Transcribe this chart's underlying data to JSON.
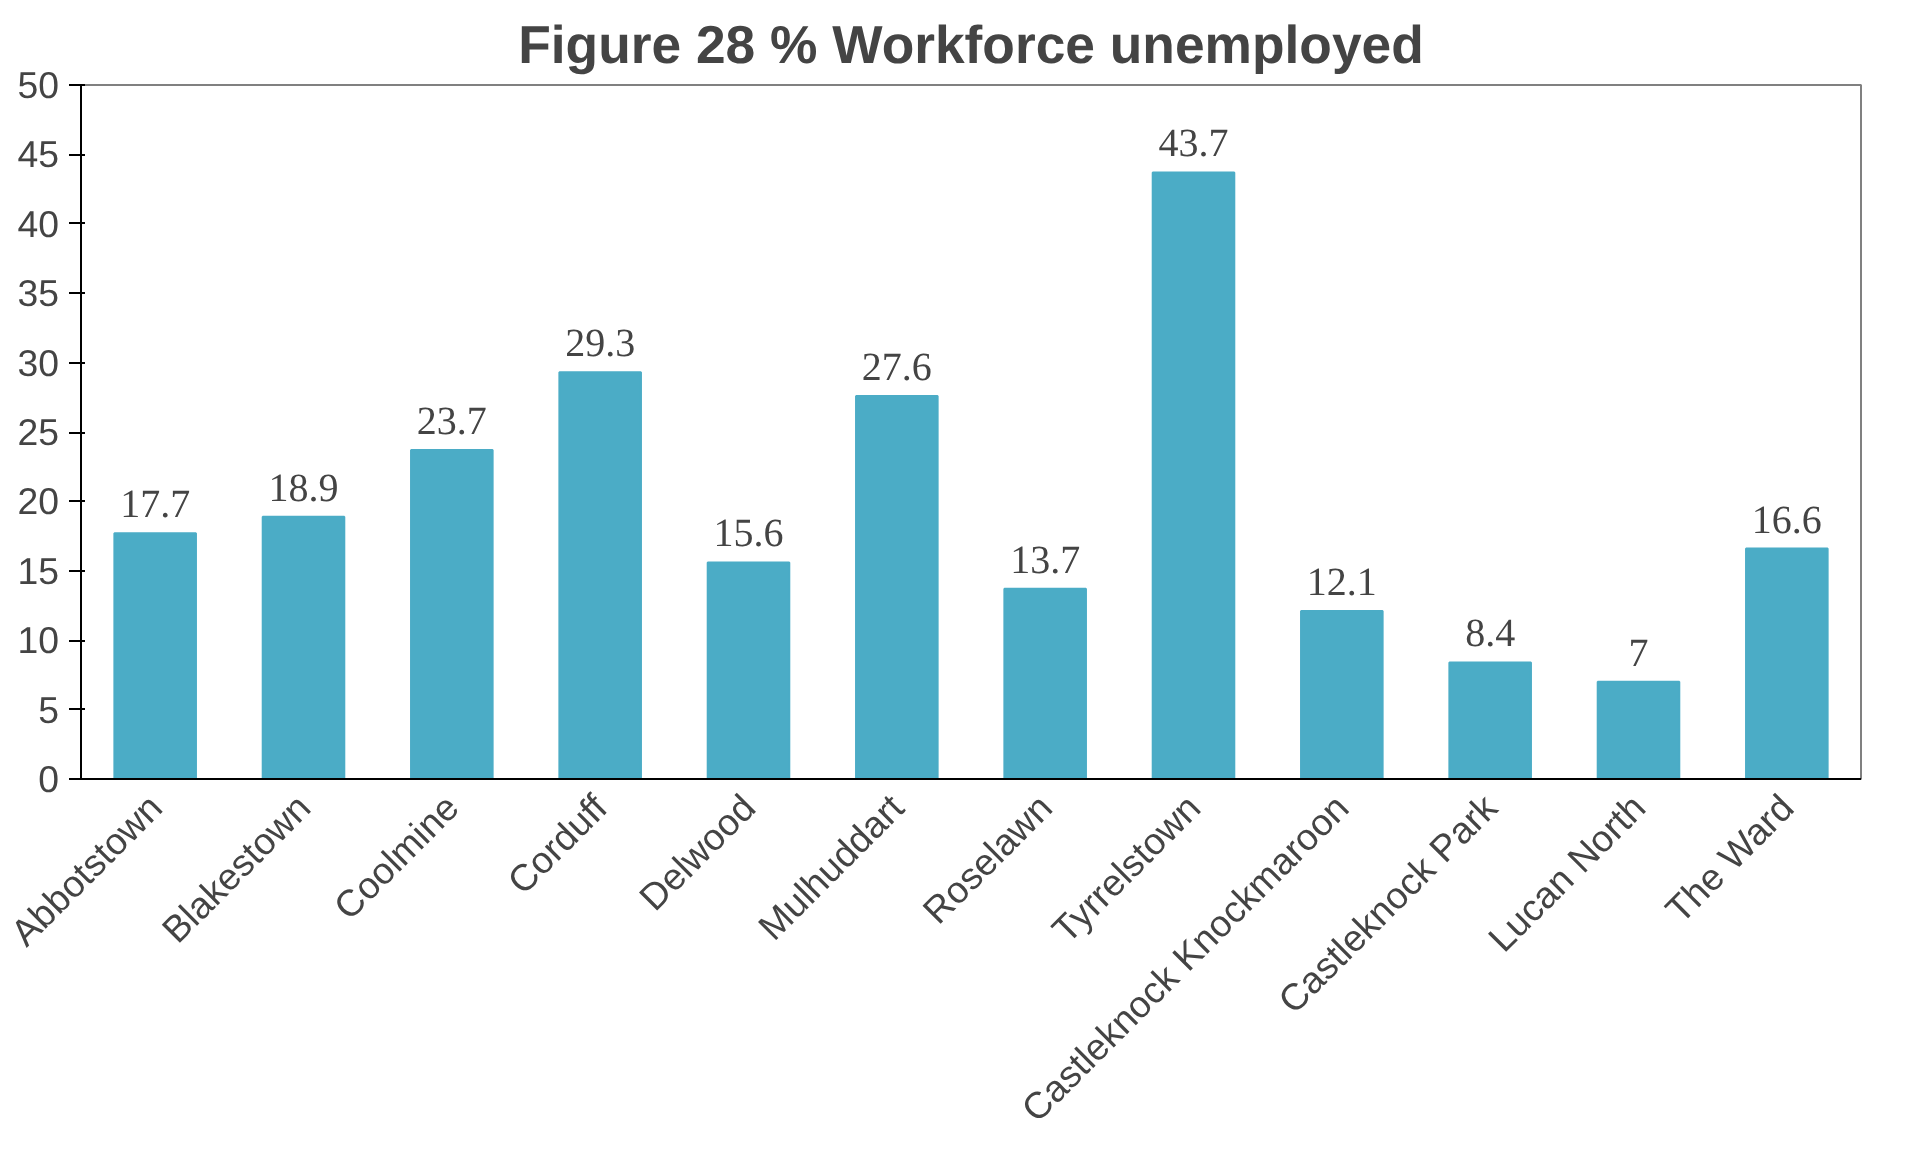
{
  "chart_data": {
    "type": "bar",
    "title": "Figure 28 % Workforce unemployed",
    "categories": [
      "Abbotstown",
      "Blakestown",
      "Coolmine",
      "Corduff",
      "Delwood",
      "Mulhuddart",
      "Roselawn",
      "Tyrrelstown",
      "Castleknock Knockmaroon",
      "Castleknock Park",
      "Lucan North",
      "The Ward"
    ],
    "values": [
      17.7,
      18.9,
      23.7,
      29.3,
      15.6,
      27.6,
      13.7,
      43.7,
      12.1,
      8.4,
      7,
      16.6
    ],
    "color": "#4bacc6",
    "ylim": [
      0,
      50
    ],
    "yticks": [
      0,
      5,
      10,
      15,
      20,
      25,
      30,
      35,
      40,
      45,
      50
    ],
    "grid": false,
    "data_labels": true
  }
}
